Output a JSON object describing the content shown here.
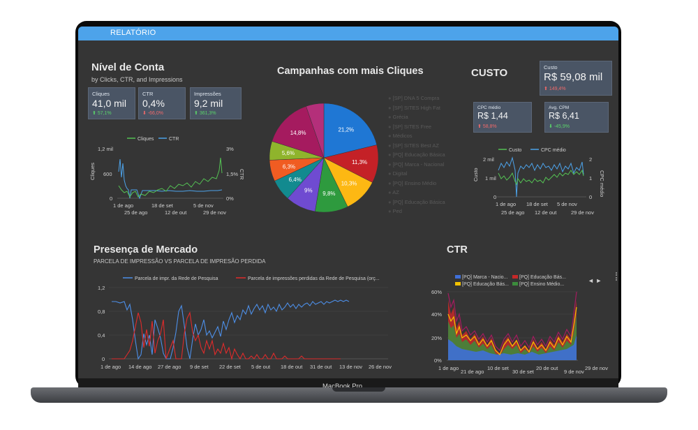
{
  "device": {
    "brand_label": "MacBook Pro"
  },
  "app": {
    "top_title": "RELATÓRIO",
    "accent": "#4da3ea"
  },
  "account": {
    "title": "Nível de Conta",
    "subtitle": "by Clicks, CTR, and Impressions",
    "scorecards": [
      {
        "label": "Cliques",
        "value": "41,0 mil",
        "delta": "57,1%",
        "direction": "up"
      },
      {
        "label": "CTR",
        "value": "0,4%",
        "delta": "-66,0%",
        "direction": "down"
      },
      {
        "label": "Impressões",
        "value": "9,2 mil",
        "delta": "361,3%",
        "direction": "up"
      }
    ],
    "chart_legend": [
      "Cliques",
      "CTR"
    ],
    "y_left_ticks": [
      "1,2 mil",
      "600",
      "0"
    ],
    "y_right_ticks": [
      "3%",
      "1,5%",
      "0%"
    ],
    "x_ticks_row1": [
      "1 de ago",
      "18 de set",
      "5 de nov"
    ],
    "x_ticks_row2": [
      "25 de ago",
      "12 de out",
      "29 de nov"
    ],
    "y_left_label": "Cliques",
    "y_right_label": "CTR"
  },
  "pie": {
    "title": "Campanhas com mais Cliques",
    "legend": [
      "[SP] DNA 5 Compra",
      "[SP] SITES High Fat",
      "Grécia",
      "[SP] SITES Free",
      "Médicos",
      "[SP] SITES Best AZ",
      "[PQ] Educação Básica",
      "[PQ] Marca - Nacional",
      "Digital",
      "[PQ] Ensino Médio",
      "AZ",
      "[PQ] Educação Básica",
      "Ped"
    ]
  },
  "cost": {
    "title": "CUSTO",
    "total": {
      "label": "Custo",
      "value": "R$ 59,08 mil",
      "delta": "149,4%",
      "direction": "up"
    },
    "cpc": {
      "label": "CPC médio",
      "value": "R$ 1,44",
      "delta": "58,8%",
      "direction": "up"
    },
    "cpm": {
      "label": "Avg. CPM",
      "value": "R$ 6,41",
      "delta": "-45,9%",
      "direction": "down"
    },
    "chart_legend": [
      "Custo",
      "CPC médio"
    ],
    "y_left_ticks": [
      "2 mil",
      "1 mil",
      "0"
    ],
    "y_right_ticks": [
      "2",
      "1",
      "0"
    ],
    "x_ticks_row1": [
      "1 de ago",
      "18 de set",
      "5 de nov"
    ],
    "x_ticks_row2": [
      "25 de ago",
      "12 de out",
      "29 de nov"
    ],
    "y_left_label": "Custo",
    "y_right_label": "CPC médio"
  },
  "market": {
    "title": "Presença de Mercado",
    "subtitle": "PARCELA DE IMPRESSÃO VS PARCELA DE IMPRESÃO PERDIDA",
    "legend": [
      "Parcela de impr. da Rede de Pesquisa",
      "Parcela de impressões perdidas da Rede de Pesquisa (orç..."
    ],
    "y_ticks": [
      "1,2",
      "0,8",
      "0,4",
      "0"
    ],
    "x_ticks": [
      "1 de ago",
      "14 de ago",
      "27 de ago",
      "9 de set",
      "22 de set",
      "5 de out",
      "18 de out",
      "31 de out",
      "13 de nov",
      "26 de nov"
    ]
  },
  "ctr": {
    "title": "CTR",
    "legend": [
      "[PQ] Marca - Nacio...",
      "[PQ] Educação Bás...",
      "[PQ] Educação Bás...",
      "[PQ] Ensino Médio..."
    ],
    "pager": "◄ ►",
    "y_ticks": [
      "60%",
      "40%",
      "20%",
      "0%"
    ],
    "x_ticks_row1": [
      "1 de ago",
      "10 de set",
      "20 de out",
      "29 de nov"
    ],
    "x_ticks_row2": [
      "21 de ago",
      "30 de set",
      "9 de nov"
    ]
  },
  "chart_data": [
    {
      "type": "pie",
      "title": "Campanhas com mais Cliques",
      "values": [
        21.2,
        11.3,
        10.3,
        9.8,
        9,
        6.4,
        6.3,
        5.6,
        14.8
      ],
      "value_labels": [
        "21,2%",
        "11,3%",
        "10,3%",
        "9,8%",
        "9%",
        "6,4%",
        "6,3%",
        "5,6%",
        "14,8%"
      ],
      "colors": [
        "#1f77d4",
        "#c42127",
        "#fdb813",
        "#2e9a3e",
        "#6f4bd1",
        "#128a8f",
        "#f05c22",
        "#8fb42c",
        "#a51b5f"
      ],
      "remainder_color": "#b42f7a"
    },
    {
      "type": "line",
      "title": "Nível de Conta",
      "series": [
        {
          "name": "Cliques",
          "color": "#55c254"
        },
        {
          "name": "CTR",
          "color": "#4da3ea"
        }
      ],
      "ylim_left": [
        0,
        1200
      ],
      "ylim_right": [
        0,
        3
      ]
    },
    {
      "type": "line",
      "title": "CUSTO",
      "series": [
        {
          "name": "Custo",
          "color": "#55c254"
        },
        {
          "name": "CPC médio",
          "color": "#4da3ea"
        }
      ],
      "ylim_left": [
        0,
        2000
      ],
      "ylim_right": [
        0,
        2
      ]
    },
    {
      "type": "line",
      "title": "Presença de Mercado",
      "series": [
        {
          "name": "Parcela de impr. da Rede de Pesquisa",
          "color": "#4d8fe8"
        },
        {
          "name": "Parcela de impressões perdidas da Rede de Pesquisa (orç...",
          "color": "#e02b2b"
        }
      ],
      "ylim": [
        0,
        1.2
      ]
    },
    {
      "type": "area",
      "title": "CTR",
      "series": [
        {
          "name": "[PQ] Marca - Nacio...",
          "color": "#3f6fd8"
        },
        {
          "name": "[PQ] Educação Bás...",
          "color": "#c62828"
        },
        {
          "name": "[PQ] Educação Bás...",
          "color": "#f2c200"
        },
        {
          "name": "[PQ] Ensino Médio...",
          "color": "#3c8c3c"
        }
      ],
      "ylim": [
        0,
        0.6
      ]
    }
  ]
}
